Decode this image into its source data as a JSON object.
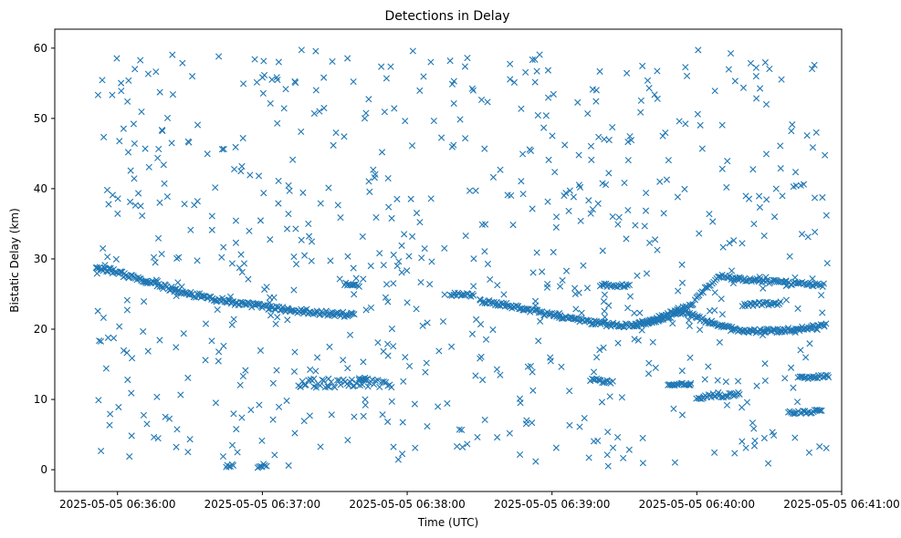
{
  "chart_data": {
    "type": "scatter",
    "title": "Detections in Delay",
    "xlabel": "Time (UTC)",
    "ylabel": "Bistatic Delay (km)",
    "x_unit": "seconds after 2025-05-05 06:36:00 UTC",
    "xlim": [
      -26,
      300
    ],
    "ylim": [
      -3.1,
      62.7
    ],
    "x_ticks": [
      0,
      60,
      120,
      180,
      240,
      300
    ],
    "x_tick_labels": [
      "2025-05-05 06:36:00",
      "2025-05-05 06:37:00",
      "2025-05-05 06:38:00",
      "2025-05-05 06:39:00",
      "2025-05-05 06:40:00",
      "2025-05-05 06:41:00"
    ],
    "y_ticks": [
      0,
      10,
      20,
      30,
      40,
      50,
      60
    ],
    "y_tick_labels": [
      "0",
      "10",
      "20",
      "30",
      "40",
      "50",
      "60"
    ],
    "marker": "x",
    "color": "#1f77b4",
    "grid": false,
    "legend": "none",
    "series": [
      {
        "name": "track A (descending)",
        "segments": [
          [
            [
              -9,
              29
            ],
            [
              0,
              28
            ],
            [
              15,
              26.5
            ],
            [
              30,
              25
            ],
            [
              45,
              24
            ],
            [
              60,
              23.2
            ],
            [
              75,
              22.6
            ],
            [
              90,
              22.2
            ],
            [
              98,
              22
            ]
          ]
        ],
        "step": 0.5,
        "jitter": 0.35
      },
      {
        "name": "track B (descending, restart)",
        "segments": [
          [
            [
              150,
              24
            ],
            [
              160,
              23.5
            ],
            [
              180,
              22
            ],
            [
              200,
              20.8
            ],
            [
              210,
              20.5
            ],
            [
              220,
              21
            ],
            [
              235,
              22.5
            ],
            [
              245,
              21
            ],
            [
              255,
              20
            ],
            [
              265,
              19.7
            ],
            [
              275,
              19.8
            ],
            [
              285,
              20.1
            ],
            [
              290,
              20.2
            ]
          ]
        ],
        "step": 0.5,
        "jitter": 0.3
      },
      {
        "name": "track C (ascending)",
        "segments": [
          [
            [
              214,
              20.5
            ],
            [
              225,
              21.7
            ],
            [
              232,
              22.7
            ],
            [
              238,
              23.5
            ],
            [
              244,
              26
            ],
            [
              250,
              27.5
            ],
            [
              260,
              27
            ],
            [
              280,
              26.5
            ],
            [
              293,
              26.3
            ]
          ]
        ],
        "step": 0.6,
        "jitter": 0.3
      },
      {
        "name": "short segments",
        "segments": [
          [
            [
              45,
              0.4
            ],
            [
              48,
              0.6
            ]
          ],
          [
            [
              58,
              0.3
            ],
            [
              62,
              0.8
            ]
          ],
          [
            [
              94,
              26.4
            ],
            [
              100,
              26.2
            ]
          ],
          [
            [
              100,
              13
            ],
            [
              104,
              12.8
            ]
          ],
          [
            [
              138,
              25
            ],
            [
              148,
              24.8
            ]
          ],
          [
            [
              240,
              10.2
            ],
            [
              250,
              10.8
            ]
          ],
          [
            [
              259,
              23.5
            ],
            [
              275,
              23.7
            ]
          ],
          [
            [
              278,
              8.2
            ],
            [
              292,
              8.3
            ]
          ],
          [
            [
              282,
              13.1
            ],
            [
              295,
              13.3
            ]
          ],
          [
            [
              290,
              20.5
            ],
            [
              294,
              20.6
            ]
          ],
          [
            [
              196,
              12.8
            ],
            [
              205,
              12.5
            ]
          ],
          [
            [
              200,
              26.3
            ],
            [
              212,
              26.2
            ]
          ],
          [
            [
              228,
              12.2
            ],
            [
              238,
              12.3
            ]
          ],
          [
            [
              250,
              10.5
            ],
            [
              258,
              10.8
            ]
          ]
        ],
        "step": 0.6,
        "jitter": 0.25
      },
      {
        "name": "clutter band (~12 km)",
        "segments": [
          [
            [
              75,
              12.3
            ],
            [
              114,
              12.2
            ]
          ]
        ],
        "step": 0.8,
        "jitter": 0.6
      },
      {
        "name": "scattered detections",
        "segments": [],
        "random_points": {
          "count": 720,
          "x_range": [
            -9,
            295
          ],
          "y_range": [
            0.5,
            59.8
          ],
          "seed": 20250505
        }
      }
    ]
  }
}
